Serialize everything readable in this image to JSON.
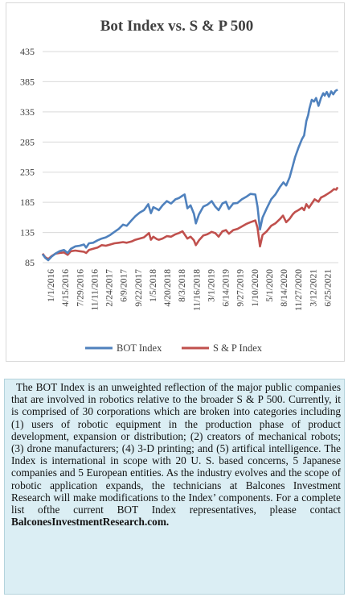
{
  "chart_data": {
    "type": "line",
    "title": "Bot Index vs. S & P 500",
    "xlabel": "",
    "ylabel": "",
    "ylim": [
      85,
      435
    ],
    "yticks": [
      85,
      135,
      185,
      235,
      285,
      335,
      385,
      435
    ],
    "grid": true,
    "legend": "bottom",
    "x_start": "2016-01-01",
    "x_end": "2021-09-30",
    "xticks": [
      "1/1/2016",
      "4/15/2016",
      "7/29/2016",
      "11/11/2016",
      "2/24/2017",
      "6/9/2017",
      "9/22/2017",
      "1/5/2018",
      "4/20/2018",
      "8/3/2018",
      "11/16/2018",
      "3/1/2019",
      "6/14/2019",
      "9/27/2019",
      "1/10/2020",
      "5/1/2020",
      "8/14/2020",
      "11/27/2020",
      "3/12/2021",
      "6/25/2021"
    ],
    "series": [
      {
        "name": "BOT Index",
        "color": "#4f81bd",
        "points": [
          [
            "2016-01-01",
            99
          ],
          [
            "2016-01-20",
            93
          ],
          [
            "2016-02-10",
            89
          ],
          [
            "2016-03-05",
            95
          ],
          [
            "2016-04-01",
            100
          ],
          [
            "2016-05-01",
            104
          ],
          [
            "2016-06-01",
            106
          ],
          [
            "2016-06-27",
            101
          ],
          [
            "2016-07-20",
            108
          ],
          [
            "2016-08-20",
            112
          ],
          [
            "2016-09-20",
            113
          ],
          [
            "2016-10-20",
            115
          ],
          [
            "2016-11-05",
            110
          ],
          [
            "2016-11-25",
            117
          ],
          [
            "2016-12-25",
            118
          ],
          [
            "2017-01-25",
            122
          ],
          [
            "2017-02-24",
            125
          ],
          [
            "2017-03-25",
            127
          ],
          [
            "2017-04-25",
            131
          ],
          [
            "2017-05-25",
            136
          ],
          [
            "2017-06-25",
            141
          ],
          [
            "2017-07-25",
            148
          ],
          [
            "2017-08-20",
            146
          ],
          [
            "2017-09-22",
            155
          ],
          [
            "2017-10-20",
            162
          ],
          [
            "2017-11-20",
            168
          ],
          [
            "2017-12-20",
            172
          ],
          [
            "2018-01-20",
            182
          ],
          [
            "2018-02-08",
            167
          ],
          [
            "2018-02-25",
            177
          ],
          [
            "2018-03-22",
            174
          ],
          [
            "2018-04-05",
            172
          ],
          [
            "2018-05-01",
            180
          ],
          [
            "2018-06-01",
            187
          ],
          [
            "2018-07-01",
            183
          ],
          [
            "2018-08-01",
            190
          ],
          [
            "2018-08-25",
            192
          ],
          [
            "2018-09-20",
            196
          ],
          [
            "2018-10-05",
            198
          ],
          [
            "2018-10-25",
            175
          ],
          [
            "2018-11-16",
            180
          ],
          [
            "2018-12-10",
            166
          ],
          [
            "2018-12-24",
            150
          ],
          [
            "2019-01-15",
            165
          ],
          [
            "2019-02-15",
            178
          ],
          [
            "2019-03-15",
            181
          ],
          [
            "2019-04-15",
            187
          ],
          [
            "2019-05-10",
            178
          ],
          [
            "2019-06-03",
            172
          ],
          [
            "2019-06-30",
            183
          ],
          [
            "2019-07-25",
            186
          ],
          [
            "2019-08-15",
            174
          ],
          [
            "2019-09-15",
            183
          ],
          [
            "2019-10-15",
            184
          ],
          [
            "2019-11-15",
            190
          ],
          [
            "2019-12-15",
            194
          ],
          [
            "2020-01-15",
            199
          ],
          [
            "2020-02-19",
            198
          ],
          [
            "2020-03-05",
            178
          ],
          [
            "2020-03-23",
            140
          ],
          [
            "2020-04-10",
            160
          ],
          [
            "2020-05-10",
            175
          ],
          [
            "2020-06-10",
            190
          ],
          [
            "2020-07-10",
            198
          ],
          [
            "2020-08-10",
            210
          ],
          [
            "2020-09-05",
            218
          ],
          [
            "2020-09-25",
            213
          ],
          [
            "2020-10-20",
            227
          ],
          [
            "2020-11-10",
            245
          ],
          [
            "2020-11-27",
            260
          ],
          [
            "2020-12-20",
            275
          ],
          [
            "2021-01-15",
            290
          ],
          [
            "2021-01-30",
            296
          ],
          [
            "2021-02-15",
            320
          ],
          [
            "2021-02-28",
            330
          ],
          [
            "2021-03-08",
            340
          ],
          [
            "2021-03-25",
            355
          ],
          [
            "2021-04-10",
            352
          ],
          [
            "2021-04-25",
            358
          ],
          [
            "2021-05-12",
            345
          ],
          [
            "2021-05-30",
            358
          ],
          [
            "2021-06-15",
            366
          ],
          [
            "2021-06-25",
            362
          ],
          [
            "2021-07-10",
            368
          ],
          [
            "2021-07-25",
            360
          ],
          [
            "2021-08-10",
            369
          ],
          [
            "2021-08-25",
            364
          ],
          [
            "2021-09-10",
            370
          ],
          [
            "2021-09-25",
            372
          ]
        ]
      },
      {
        "name": "S & P Index",
        "color": "#c0504d",
        "points": [
          [
            "2016-01-01",
            100
          ],
          [
            "2016-01-20",
            94
          ],
          [
            "2016-02-11",
            91
          ],
          [
            "2016-03-05",
            96
          ],
          [
            "2016-04-01",
            100
          ],
          [
            "2016-05-01",
            101
          ],
          [
            "2016-06-01",
            102
          ],
          [
            "2016-06-27",
            98
          ],
          [
            "2016-07-20",
            104
          ],
          [
            "2016-08-20",
            105
          ],
          [
            "2016-09-20",
            104
          ],
          [
            "2016-10-20",
            103
          ],
          [
            "2016-11-05",
            101
          ],
          [
            "2016-11-25",
            106
          ],
          [
            "2016-12-25",
            108
          ],
          [
            "2017-01-25",
            110
          ],
          [
            "2017-02-24",
            114
          ],
          [
            "2017-03-25",
            113
          ],
          [
            "2017-04-25",
            115
          ],
          [
            "2017-05-25",
            117
          ],
          [
            "2017-06-25",
            118
          ],
          [
            "2017-07-25",
            119
          ],
          [
            "2017-08-20",
            118
          ],
          [
            "2017-09-22",
            120
          ],
          [
            "2017-10-20",
            123
          ],
          [
            "2017-11-20",
            125
          ],
          [
            "2017-12-20",
            127
          ],
          [
            "2018-01-25",
            134
          ],
          [
            "2018-02-08",
            123
          ],
          [
            "2018-02-25",
            128
          ],
          [
            "2018-03-22",
            124
          ],
          [
            "2018-04-05",
            123
          ],
          [
            "2018-05-01",
            125
          ],
          [
            "2018-06-01",
            129
          ],
          [
            "2018-07-01",
            128
          ],
          [
            "2018-08-01",
            132
          ],
          [
            "2018-08-25",
            134
          ],
          [
            "2018-09-20",
            137
          ],
          [
            "2018-10-25",
            125
          ],
          [
            "2018-11-16",
            128
          ],
          [
            "2018-12-10",
            122
          ],
          [
            "2018-12-24",
            114
          ],
          [
            "2019-01-15",
            122
          ],
          [
            "2019-02-15",
            130
          ],
          [
            "2019-03-15",
            132
          ],
          [
            "2019-04-15",
            136
          ],
          [
            "2019-05-10",
            134
          ],
          [
            "2019-06-03",
            128
          ],
          [
            "2019-06-30",
            137
          ],
          [
            "2019-07-25",
            139
          ],
          [
            "2019-08-15",
            133
          ],
          [
            "2019-09-15",
            139
          ],
          [
            "2019-10-15",
            141
          ],
          [
            "2019-11-15",
            145
          ],
          [
            "2019-12-15",
            149
          ],
          [
            "2020-01-15",
            152
          ],
          [
            "2020-02-19",
            155
          ],
          [
            "2020-03-05",
            143
          ],
          [
            "2020-03-23",
            112
          ],
          [
            "2020-04-10",
            131
          ],
          [
            "2020-05-10",
            137
          ],
          [
            "2020-06-10",
            146
          ],
          [
            "2020-07-10",
            150
          ],
          [
            "2020-08-10",
            157
          ],
          [
            "2020-09-02",
            163
          ],
          [
            "2020-09-25",
            152
          ],
          [
            "2020-10-20",
            158
          ],
          [
            "2020-11-10",
            165
          ],
          [
            "2020-11-27",
            169
          ],
          [
            "2020-12-20",
            172
          ],
          [
            "2021-01-15",
            176
          ],
          [
            "2021-01-30",
            172
          ],
          [
            "2021-02-15",
            182
          ],
          [
            "2021-03-05",
            176
          ],
          [
            "2021-03-25",
            183
          ],
          [
            "2021-04-15",
            190
          ],
          [
            "2021-05-12",
            186
          ],
          [
            "2021-05-30",
            193
          ],
          [
            "2021-06-25",
            196
          ],
          [
            "2021-07-15",
            199
          ],
          [
            "2021-08-10",
            203
          ],
          [
            "2021-08-30",
            207
          ],
          [
            "2021-09-15",
            206
          ],
          [
            "2021-09-25",
            210
          ]
        ]
      }
    ]
  },
  "description": {
    "text": "The BOT Index is an unweighted reflection of the major public companies that are involved in robotics relative to the broader S & P 500. Currently, it is comprised of 30 corporations which are broken into categories including (1) users of robotic equipment in the production phase of product development, expansion or distribution; (2) creators of mechanical robots; (3) drone manufacturers; (4) 3-D printing; and (5) artifical intelligence. The Index is international in scope with 20 U. S. based concerns, 5 Japanese companies and 5 European entities. As the industry evolves and the scope of robotic application expands, the technicians at Balcones Investment Research will make modifications to the Index’ components. For a  complete list ofthe current BOT Index representatives, please contact",
    "site": "BalconesInvestmentResearch.com."
  }
}
